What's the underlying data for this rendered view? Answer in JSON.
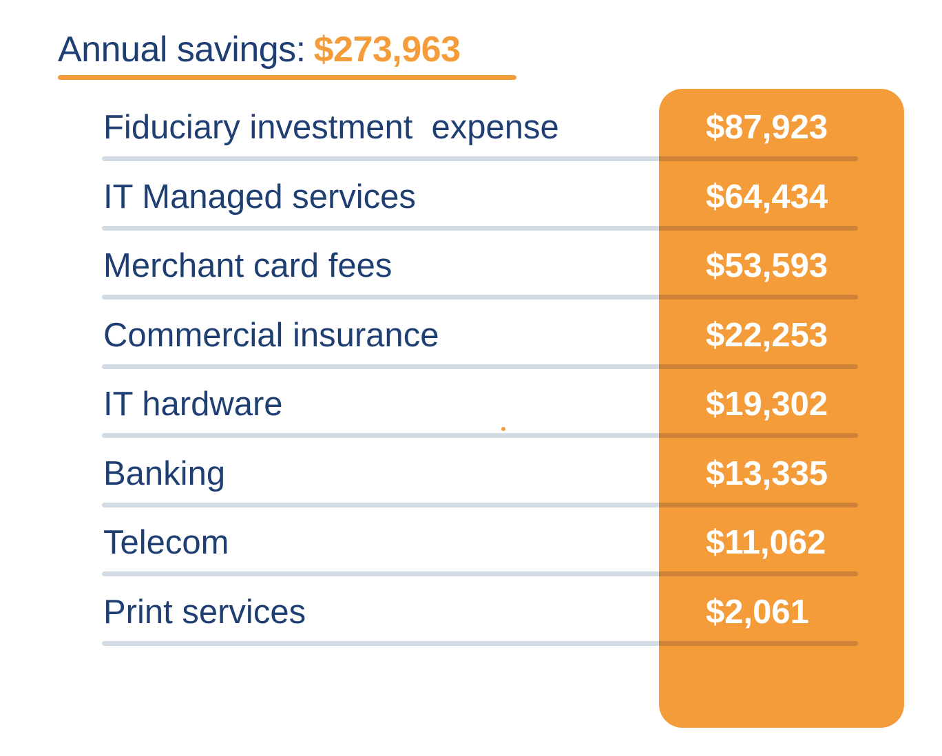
{
  "header": {
    "label": "Annual savings:",
    "total": "$273,963"
  },
  "colors": {
    "navy": "#1f3f73",
    "orange": "#f59c3a",
    "divider": "#d3dbe4"
  },
  "chart_data": {
    "type": "table",
    "title": "Annual savings: $273,963",
    "total": 273963,
    "rows": [
      {
        "category": "Fiduciary investment  expense",
        "value": 87923,
        "display": "$87,923"
      },
      {
        "category": "IT Managed services",
        "value": 64434,
        "display": "$64,434"
      },
      {
        "category": "Merchant card fees",
        "value": 53593,
        "display": "$53,593"
      },
      {
        "category": "Commercial insurance",
        "value": 22253,
        "display": "$22,253"
      },
      {
        "category": "IT hardware",
        "value": 19302,
        "display": "$19,302"
      },
      {
        "category": "Banking",
        "value": 13335,
        "display": "$13,335"
      },
      {
        "category": "Telecom",
        "value": 11062,
        "display": "$11,062"
      },
      {
        "category": "Print services",
        "value": 2061,
        "display": "$2,061"
      }
    ]
  }
}
